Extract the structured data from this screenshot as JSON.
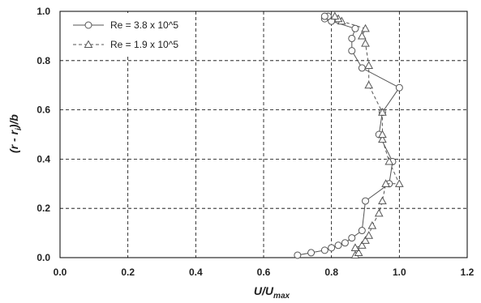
{
  "chart_data": {
    "type": "scatter",
    "xlabel": {
      "main": "U/U",
      "sub": "max"
    },
    "ylabel": {
      "pre": "(r - r",
      "sub": "i",
      "post": ")/b"
    },
    "xlim": [
      0.0,
      1.2
    ],
    "ylim": [
      0.0,
      1.0
    ],
    "xticks": [
      "0.0",
      "0.2",
      "0.4",
      "0.6",
      "0.8",
      "1.0",
      "1.2"
    ],
    "yticks": [
      "0.0",
      "0.2",
      "0.4",
      "0.6",
      "0.8",
      "1.0"
    ],
    "grid": true,
    "legend_position": "top-left",
    "series": [
      {
        "name": "Re = 3.8 x 10^5",
        "marker": "circle",
        "line": "solid",
        "x": [
          0.7,
          0.74,
          0.78,
          0.8,
          0.82,
          0.84,
          0.86,
          0.89,
          0.9,
          0.97,
          0.98,
          0.94,
          0.95,
          1.0,
          0.89,
          0.86,
          0.86,
          0.87,
          0.8,
          0.78,
          0.79,
          0.78
        ],
        "y": [
          0.01,
          0.02,
          0.03,
          0.04,
          0.05,
          0.06,
          0.08,
          0.11,
          0.23,
          0.3,
          0.39,
          0.5,
          0.59,
          0.69,
          0.77,
          0.84,
          0.89,
          0.93,
          0.96,
          0.97,
          0.98,
          0.98
        ]
      },
      {
        "name": "Re = 1.9 x 10^5",
        "marker": "triangle",
        "line": "dashed",
        "x": [
          0.87,
          0.88,
          0.87,
          0.89,
          0.9,
          0.91,
          0.92,
          0.94,
          0.95,
          0.96,
          1.0,
          0.97,
          0.95,
          0.95,
          0.95,
          0.91,
          0.91,
          0.9,
          0.89,
          0.9,
          0.83,
          0.82,
          0.81
        ],
        "y": [
          0.01,
          0.02,
          0.04,
          0.05,
          0.07,
          0.09,
          0.13,
          0.18,
          0.23,
          0.3,
          0.3,
          0.39,
          0.48,
          0.5,
          0.59,
          0.7,
          0.78,
          0.87,
          0.9,
          0.93,
          0.96,
          0.97,
          0.98
        ]
      }
    ]
  }
}
